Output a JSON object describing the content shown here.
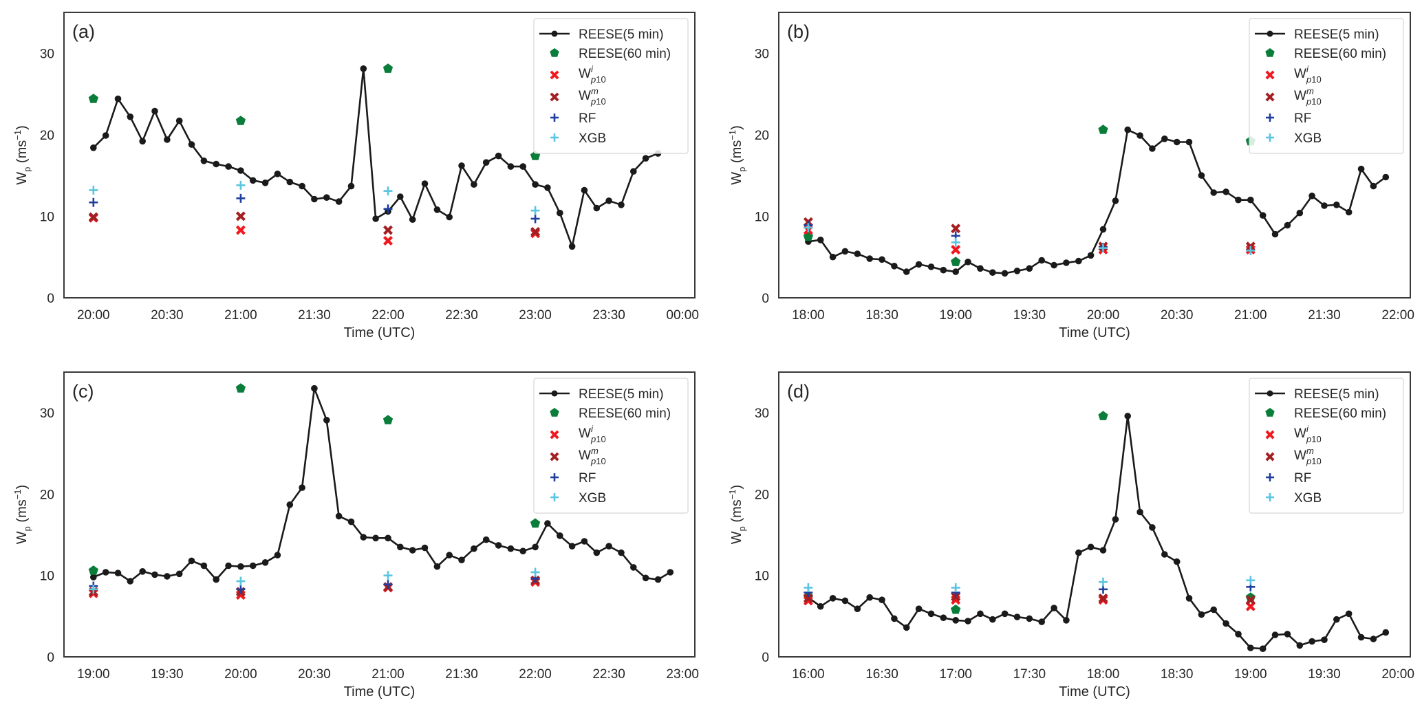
{
  "figure": {
    "legend_labels": {
      "reese5": "REESE(5 min)",
      "reese60": "REESE(60 min)",
      "wi_base": "W",
      "wi_sup": "i",
      "wi_sub": "p10",
      "wm_base": "W",
      "wm_sup": "m",
      "wm_sub": "p10",
      "rf": "RF",
      "xgb": "XGB"
    },
    "colors": {
      "reese5": "#1a1a1a",
      "reese60": "#0a7d3a",
      "wi": "#f0191e",
      "wm": "#a31f22",
      "rf": "#1f3e9e",
      "xgb": "#5bc4e0",
      "axes": "#3a3a3a"
    }
  },
  "chart_data": [
    {
      "type": "line",
      "panel_label": "(a)",
      "xlabel": "Time (UTC)",
      "ylabel_base": "W",
      "ylabel_sub": "p",
      "ylabel_unit": " (ms",
      "ylabel_exp": "−1",
      "ylabel_close": ")",
      "ylim": [
        0,
        35
      ],
      "yticks": [
        0,
        10,
        20,
        30
      ],
      "x_start": "20:00",
      "xlim_minutes": [
        -12,
        245
      ],
      "xticks_minutes": [
        0,
        30,
        60,
        90,
        120,
        150,
        180,
        210,
        240
      ],
      "xtick_labels": [
        "20:00",
        "20:30",
        "21:00",
        "21:30",
        "22:00",
        "22:30",
        "23:00",
        "23:30",
        "00:00"
      ],
      "legend": "top-right",
      "grid": false,
      "series": [
        {
          "name": "REESE(5 min)",
          "kind": "line",
          "interval_minutes": 5,
          "values": [
            18.4,
            19.9,
            24.4,
            22.2,
            19.2,
            22.9,
            19.4,
            21.7,
            18.8,
            16.8,
            16.4,
            16.1,
            15.6,
            14.4,
            14.1,
            15.2,
            14.2,
            13.7,
            12.1,
            12.3,
            11.8,
            13.7,
            28.1,
            9.7,
            10.6,
            12.4,
            9.6,
            14.0,
            10.8,
            9.9,
            16.2,
            13.9,
            16.6,
            17.4,
            16.1,
            16.1,
            13.9,
            13.5,
            10.4,
            6.3,
            13.2,
            11.0,
            11.9,
            11.4,
            15.5,
            17.1,
            17.7
          ]
        },
        {
          "name": "REESE(60 min)",
          "kind": "pentagon",
          "x_minutes": [
            0,
            60,
            120,
            180
          ],
          "values": [
            24.4,
            21.7,
            28.1,
            17.4
          ]
        },
        {
          "name": "Wi_p10",
          "kind": "xmark",
          "x_minutes": [
            0,
            60,
            120,
            180
          ],
          "values": [
            9.8,
            8.3,
            7.0,
            7.9
          ]
        },
        {
          "name": "Wm_p10",
          "kind": "xmark",
          "x_minutes": [
            0,
            60,
            120,
            180
          ],
          "values": [
            9.9,
            10.0,
            8.3,
            8.1
          ]
        },
        {
          "name": "RF",
          "kind": "plus",
          "x_minutes": [
            0,
            60,
            120,
            180
          ],
          "values": [
            11.7,
            12.2,
            10.9,
            9.7
          ]
        },
        {
          "name": "XGB",
          "kind": "plus",
          "x_minutes": [
            0,
            60,
            120,
            180
          ],
          "values": [
            13.2,
            13.8,
            13.1,
            10.7
          ]
        }
      ]
    },
    {
      "type": "line",
      "panel_label": "(b)",
      "xlabel": "Time (UTC)",
      "ylabel_base": "W",
      "ylabel_sub": "p",
      "ylabel_unit": " (ms",
      "ylabel_exp": "−1",
      "ylabel_close": ")",
      "ylim": [
        0,
        35
      ],
      "yticks": [
        0,
        10,
        20,
        30
      ],
      "x_start": "18:00",
      "xlim_minutes": [
        -12,
        245
      ],
      "xticks_minutes": [
        0,
        30,
        60,
        90,
        120,
        150,
        180,
        210,
        240
      ],
      "xtick_labels": [
        "18:00",
        "18:30",
        "19:00",
        "19:30",
        "20:00",
        "20:30",
        "21:00",
        "21:30",
        "22:00"
      ],
      "legend": "top-right",
      "grid": false,
      "series": [
        {
          "name": "REESE(5 min)",
          "kind": "line",
          "interval_minutes": 5,
          "values": [
            6.9,
            7.1,
            5.0,
            5.7,
            5.4,
            4.8,
            4.7,
            3.9,
            3.2,
            4.1,
            3.8,
            3.4,
            3.2,
            4.4,
            3.6,
            3.1,
            3.0,
            3.3,
            3.6,
            4.6,
            4.0,
            4.3,
            4.5,
            5.2,
            8.4,
            11.9,
            20.6,
            19.9,
            18.3,
            19.5,
            19.1,
            19.1,
            15.0,
            12.9,
            13.0,
            12.0,
            12.0,
            10.1,
            7.8,
            8.9,
            10.4,
            12.5,
            11.3,
            11.4,
            10.5,
            15.8,
            13.7,
            14.8
          ]
        },
        {
          "name": "REESE(60 min)",
          "kind": "pentagon",
          "x_minutes": [
            0,
            60,
            120,
            180
          ],
          "values": [
            7.5,
            4.4,
            20.6,
            19.2
          ]
        },
        {
          "name": "Wi_p10",
          "kind": "xmark",
          "x_minutes": [
            0,
            60,
            120,
            180
          ],
          "values": [
            8.3,
            5.9,
            5.9,
            5.9
          ]
        },
        {
          "name": "Wm_p10",
          "kind": "xmark",
          "x_minutes": [
            0,
            60,
            120,
            180
          ],
          "values": [
            9.3,
            8.5,
            6.3,
            6.3
          ]
        },
        {
          "name": "RF",
          "kind": "plus",
          "x_minutes": [
            0,
            60,
            120,
            180
          ],
          "values": [
            8.9,
            7.6,
            6.2,
            5.8
          ]
        },
        {
          "name": "XGB",
          "kind": "plus",
          "x_minutes": [
            0,
            60,
            120,
            180
          ],
          "values": [
            8.6,
            6.8,
            6.1,
            5.8
          ]
        }
      ]
    },
    {
      "type": "line",
      "panel_label": "(c)",
      "xlabel": "Time (UTC)",
      "ylabel_base": "W",
      "ylabel_sub": "p",
      "ylabel_unit": " (ms",
      "ylabel_exp": "−1",
      "ylabel_close": ")",
      "ylim": [
        0,
        35
      ],
      "yticks": [
        0,
        10,
        20,
        30
      ],
      "x_start": "19:00",
      "xlim_minutes": [
        -12,
        245
      ],
      "xticks_minutes": [
        0,
        30,
        60,
        90,
        120,
        150,
        180,
        210,
        240
      ],
      "xtick_labels": [
        "19:00",
        "19:30",
        "20:00",
        "20:30",
        "21:00",
        "21:30",
        "22:00",
        "22:30",
        "23:00"
      ],
      "legend": "top-right",
      "grid": false,
      "series": [
        {
          "name": "REESE(5 min)",
          "kind": "line",
          "interval_minutes": 5,
          "values": [
            9.8,
            10.4,
            10.3,
            9.3,
            10.5,
            10.1,
            9.9,
            10.2,
            11.8,
            11.2,
            9.5,
            11.2,
            11.1,
            11.2,
            11.6,
            12.5,
            18.7,
            20.8,
            33.0,
            29.1,
            17.3,
            16.6,
            14.7,
            14.6,
            14.6,
            13.5,
            13.1,
            13.4,
            11.1,
            12.5,
            11.9,
            13.3,
            14.4,
            13.7,
            13.3,
            13.0,
            13.5,
            16.4,
            14.9,
            13.6,
            14.2,
            12.8,
            13.6,
            12.8,
            11.0,
            9.7,
            9.5,
            10.4
          ]
        },
        {
          "name": "REESE(60 min)",
          "kind": "pentagon",
          "x_minutes": [
            0,
            60,
            120,
            180
          ],
          "values": [
            10.6,
            33.0,
            29.1,
            16.4
          ]
        },
        {
          "name": "Wi_p10",
          "kind": "xmark",
          "x_minutes": [
            0,
            60,
            120,
            180
          ],
          "values": [
            7.8,
            7.6,
            8.5,
            9.2
          ]
        },
        {
          "name": "Wm_p10",
          "kind": "xmark",
          "x_minutes": [
            0,
            60,
            120,
            180
          ],
          "values": [
            8.0,
            8.0,
            8.6,
            9.4
          ]
        },
        {
          "name": "RF",
          "kind": "plus",
          "x_minutes": [
            0,
            60,
            120,
            180
          ],
          "values": [
            8.7,
            8.3,
            8.9,
            9.6
          ]
        },
        {
          "name": "XGB",
          "kind": "plus",
          "x_minutes": [
            0,
            60,
            120,
            180
          ],
          "values": [
            8.3,
            9.3,
            10.0,
            10.4
          ]
        }
      ]
    },
    {
      "type": "line",
      "panel_label": "(d)",
      "xlabel": "Time (UTC)",
      "ylabel_base": "W",
      "ylabel_sub": "p",
      "ylabel_unit": " (ms",
      "ylabel_exp": "−1",
      "ylabel_close": ")",
      "ylim": [
        0,
        35
      ],
      "yticks": [
        0,
        10,
        20,
        30
      ],
      "x_start": "16:00",
      "xlim_minutes": [
        -12,
        245
      ],
      "xticks_minutes": [
        0,
        30,
        60,
        90,
        120,
        150,
        180,
        210,
        240
      ],
      "xtick_labels": [
        "16:00",
        "16:30",
        "17:00",
        "17:30",
        "18:00",
        "18:30",
        "19:00",
        "19:30",
        "20:00"
      ],
      "legend": "top-right",
      "grid": false,
      "series": [
        {
          "name": "REESE(5 min)",
          "kind": "line",
          "interval_minutes": 5,
          "values": [
            7.3,
            6.2,
            7.2,
            6.9,
            5.9,
            7.3,
            7.0,
            4.7,
            3.6,
            5.9,
            5.3,
            4.8,
            4.5,
            4.4,
            5.3,
            4.6,
            5.3,
            4.9,
            4.7,
            4.3,
            6.0,
            4.5,
            12.8,
            13.5,
            13.1,
            16.9,
            29.6,
            17.8,
            15.9,
            12.6,
            11.7,
            7.2,
            5.2,
            5.8,
            4.1,
            2.8,
            1.1,
            1.0,
            2.7,
            2.8,
            1.4,
            1.9,
            2.1,
            4.6,
            5.3,
            2.4,
            2.2,
            3.0
          ]
        },
        {
          "name": "REESE(60 min)",
          "kind": "pentagon",
          "x_minutes": [
            0,
            60,
            120,
            180
          ],
          "values": [
            7.4,
            5.8,
            29.6,
            7.3
          ]
        },
        {
          "name": "Wi_p10",
          "kind": "xmark",
          "x_minutes": [
            0,
            60,
            120,
            180
          ],
          "values": [
            6.9,
            7.0,
            7.0,
            6.2
          ]
        },
        {
          "name": "Wm_p10",
          "kind": "xmark",
          "x_minutes": [
            0,
            60,
            120,
            180
          ],
          "values": [
            7.2,
            7.4,
            7.2,
            7.0
          ]
        },
        {
          "name": "RF",
          "kind": "plus",
          "x_minutes": [
            0,
            60,
            120,
            180
          ],
          "values": [
            7.9,
            7.9,
            8.3,
            8.6
          ]
        },
        {
          "name": "XGB",
          "kind": "plus",
          "x_minutes": [
            0,
            60,
            120,
            180
          ],
          "values": [
            8.5,
            8.5,
            9.2,
            9.4
          ]
        }
      ]
    }
  ]
}
